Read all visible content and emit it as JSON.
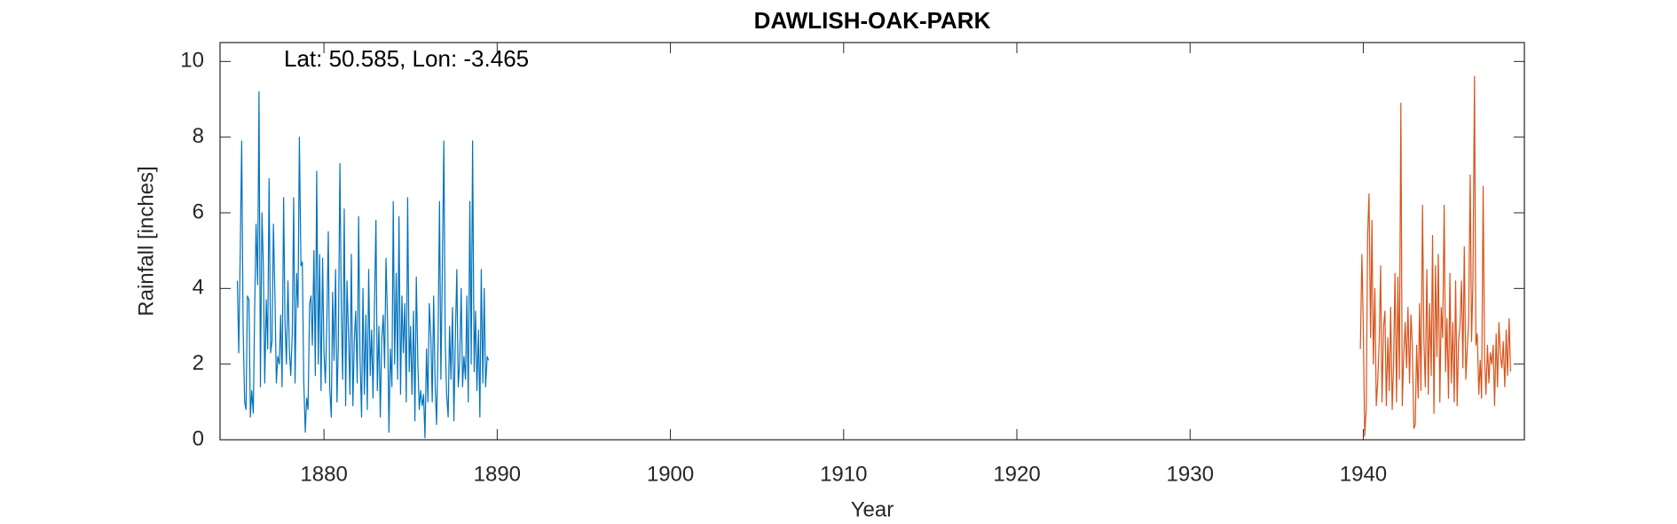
{
  "chart_data": {
    "type": "line",
    "title": "DAWLISH-OAK-PARK",
    "annotation": "Lat: 50.585, Lon: -3.465",
    "x_label": "Year",
    "y_label": "Rainfall [inches]",
    "xlim": [
      1874,
      1949.3
    ],
    "xticks": [
      1880,
      1890,
      1900,
      1910,
      1920,
      1930,
      1940
    ],
    "ylim": [
      0,
      10.5
    ],
    "yticks": [
      0,
      2,
      4,
      6,
      8,
      10
    ],
    "grid": false,
    "series": [
      {
        "color": "#0072BD",
        "x": [
          1875.0,
          1875.08,
          1875.17,
          1875.25,
          1875.33,
          1875.42,
          1875.5,
          1875.58,
          1875.67,
          1875.75,
          1875.83,
          1875.92,
          1876.0,
          1876.08,
          1876.17,
          1876.25,
          1876.33,
          1876.42,
          1876.5,
          1876.58,
          1876.67,
          1876.75,
          1876.83,
          1876.92,
          1877.0,
          1877.08,
          1877.17,
          1877.25,
          1877.33,
          1877.42,
          1877.5,
          1877.58,
          1877.67,
          1877.75,
          1877.83,
          1877.92,
          1878.0,
          1878.08,
          1878.17,
          1878.25,
          1878.33,
          1878.42,
          1878.5,
          1878.58,
          1878.67,
          1878.75,
          1878.83,
          1878.92,
          1879.0,
          1879.08,
          1879.17,
          1879.25,
          1879.33,
          1879.42,
          1879.5,
          1879.58,
          1879.67,
          1879.75,
          1879.83,
          1879.92,
          1880.0,
          1880.08,
          1880.17,
          1880.25,
          1880.33,
          1880.42,
          1880.5,
          1880.58,
          1880.67,
          1880.75,
          1880.83,
          1880.92,
          1881.0,
          1881.08,
          1881.17,
          1881.25,
          1881.33,
          1881.42,
          1881.5,
          1881.58,
          1881.67,
          1881.75,
          1881.83,
          1881.92,
          1882.0,
          1882.08,
          1882.17,
          1882.25,
          1882.33,
          1882.42,
          1882.5,
          1882.58,
          1882.67,
          1882.75,
          1882.83,
          1882.92,
          1883.0,
          1883.08,
          1883.17,
          1883.25,
          1883.33,
          1883.42,
          1883.5,
          1883.58,
          1883.67,
          1883.75,
          1883.83,
          1883.92,
          1884.0,
          1884.08,
          1884.17,
          1884.25,
          1884.33,
          1884.42,
          1884.5,
          1884.58,
          1884.67,
          1884.75,
          1884.83,
          1884.92,
          1885.0,
          1885.08,
          1885.17,
          1885.25,
          1885.33,
          1885.42,
          1885.5,
          1885.58,
          1885.67,
          1885.75,
          1885.83,
          1885.92,
          1886.0,
          1886.08,
          1886.17,
          1886.25,
          1886.33,
          1886.42,
          1886.5,
          1886.58,
          1886.67,
          1886.75,
          1886.83,
          1886.92,
          1887.0,
          1887.08,
          1887.17,
          1887.25,
          1887.33,
          1887.42,
          1887.5,
          1887.58,
          1887.67,
          1887.75,
          1887.83,
          1887.92,
          1888.0,
          1888.08,
          1888.17,
          1888.25,
          1888.33,
          1888.42,
          1888.5,
          1888.58,
          1888.67,
          1888.75,
          1888.83,
          1888.92,
          1889.0,
          1889.08,
          1889.17,
          1889.25,
          1889.33,
          1889.42,
          1889.5
        ],
        "values": [
          4.2,
          2.3,
          5.1,
          7.9,
          3.0,
          1.0,
          0.8,
          3.8,
          3.7,
          0.6,
          1.3,
          0.7,
          3.5,
          5.7,
          4.1,
          9.2,
          1.4,
          6.0,
          4.6,
          1.5,
          3.7,
          2.4,
          6.9,
          2.3,
          2.6,
          5.7,
          3.8,
          1.5,
          2.2,
          2.0,
          3.3,
          1.4,
          6.4,
          3.1,
          2.0,
          4.2,
          2.4,
          1.7,
          2.8,
          6.4,
          1.5,
          4.4,
          3.5,
          8.0,
          4.6,
          4.7,
          1.6,
          0.2,
          1.1,
          0.8,
          3.6,
          3.8,
          2.5,
          5.0,
          1.7,
          7.1,
          2.0,
          4.9,
          1.3,
          4.8,
          2.3,
          1.5,
          3.2,
          5.5,
          1.4,
          0.6,
          3.9,
          2.1,
          4.5,
          1.0,
          2.5,
          7.3,
          3.5,
          1.6,
          6.1,
          0.9,
          4.2,
          2.7,
          1.2,
          4.9,
          0.9,
          2.6,
          3.4,
          1.5,
          5.9,
          2.2,
          0.6,
          4.0,
          1.2,
          3.3,
          0.8,
          4.5,
          1.7,
          2.9,
          1.1,
          3.7,
          5.8,
          1.3,
          3.0,
          0.6,
          2.6,
          3.3,
          1.9,
          4.8,
          3.1,
          0.2,
          2.4,
          1.4,
          6.3,
          2.0,
          4.4,
          1.6,
          5.9,
          1.2,
          3.8,
          2.3,
          3.6,
          1.0,
          6.4,
          1.8,
          3.0,
          1.2,
          3.4,
          0.5,
          4.3,
          2.0,
          0.8,
          1.3,
          0.9,
          1.2,
          0.05,
          2.4,
          1.0,
          3.6,
          2.7,
          1.0,
          3.8,
          1.4,
          0.4,
          2.4,
          6.3,
          1.6,
          4.4,
          7.9,
          2.6,
          1.2,
          0.6,
          3.0,
          1.6,
          3.5,
          0.5,
          2.6,
          4.5,
          1.4,
          2.0,
          4.0,
          1.4,
          2.2,
          1.6,
          3.8,
          1.0,
          6.3,
          2.0,
          7.9,
          1.8,
          3.4,
          1.3,
          2.9,
          0.6,
          4.5,
          1.5,
          4.0,
          1.4,
          2.2,
          2.1
        ]
      },
      {
        "color": "#D95319",
        "x": [
          1939.83,
          1939.92,
          1940.0,
          1940.08,
          1940.17,
          1940.25,
          1940.33,
          1940.42,
          1940.5,
          1940.58,
          1940.67,
          1940.75,
          1940.83,
          1940.92,
          1941.0,
          1941.08,
          1941.17,
          1941.25,
          1941.33,
          1941.42,
          1941.5,
          1941.58,
          1941.67,
          1941.75,
          1941.83,
          1941.92,
          1942.0,
          1942.08,
          1942.17,
          1942.25,
          1942.33,
          1942.42,
          1942.5,
          1942.58,
          1942.67,
          1942.75,
          1942.83,
          1942.92,
          1943.0,
          1943.08,
          1943.17,
          1943.25,
          1943.33,
          1943.42,
          1943.5,
          1943.58,
          1943.67,
          1943.75,
          1943.83,
          1943.92,
          1944.0,
          1944.08,
          1944.17,
          1944.25,
          1944.33,
          1944.42,
          1944.5,
          1944.58,
          1944.67,
          1944.75,
          1944.83,
          1944.92,
          1945.0,
          1945.08,
          1945.17,
          1945.25,
          1945.33,
          1945.42,
          1945.5,
          1945.58,
          1945.67,
          1945.75,
          1945.83,
          1945.92,
          1946.0,
          1946.08,
          1946.17,
          1946.25,
          1946.33,
          1946.42,
          1946.5,
          1946.58,
          1946.67,
          1946.75,
          1946.83,
          1946.92,
          1947.0,
          1947.08,
          1947.17,
          1947.25,
          1947.33,
          1947.42,
          1947.5,
          1947.58,
          1947.67,
          1947.75,
          1947.83,
          1947.92,
          1948.0,
          1948.08,
          1948.17,
          1948.25,
          1948.33,
          1948.42,
          1948.5
        ],
        "values": [
          2.4,
          4.9,
          3.0,
          0.1,
          0.8,
          5.4,
          6.5,
          2.7,
          5.8,
          2.0,
          4.0,
          0.9,
          1.5,
          2.6,
          4.6,
          1.0,
          3.0,
          3.4,
          0.9,
          2.7,
          1.3,
          3.5,
          0.8,
          2.0,
          4.4,
          1.0,
          4.3,
          1.6,
          8.9,
          0.9,
          2.2,
          3.1,
          1.9,
          3.5,
          1.5,
          3.3,
          2.5,
          0.3,
          0.4,
          2.5,
          1.1,
          3.6,
          1.3,
          6.2,
          2.6,
          1.4,
          4.5,
          1.2,
          3.6,
          1.7,
          5.4,
          0.7,
          4.6,
          2.2,
          4.9,
          1.0,
          3.5,
          2.7,
          6.2,
          1.8,
          3.2,
          1.1,
          4.4,
          1.5,
          3.1,
          1.0,
          4.2,
          0.9,
          2.6,
          3.0,
          4.2,
          1.9,
          5.1,
          1.6,
          2.4,
          3.1,
          7.0,
          2.6,
          4.2,
          9.6,
          2.5,
          2.8,
          1.2,
          2.1,
          1.1,
          6.7,
          2.2,
          1.2,
          2.5,
          1.5,
          2.3,
          2.0,
          2.5,
          0.9,
          2.8,
          1.4,
          3.1,
          2.2,
          1.9,
          2.6,
          1.4,
          2.9,
          1.7,
          3.2,
          1.8
        ]
      }
    ]
  }
}
